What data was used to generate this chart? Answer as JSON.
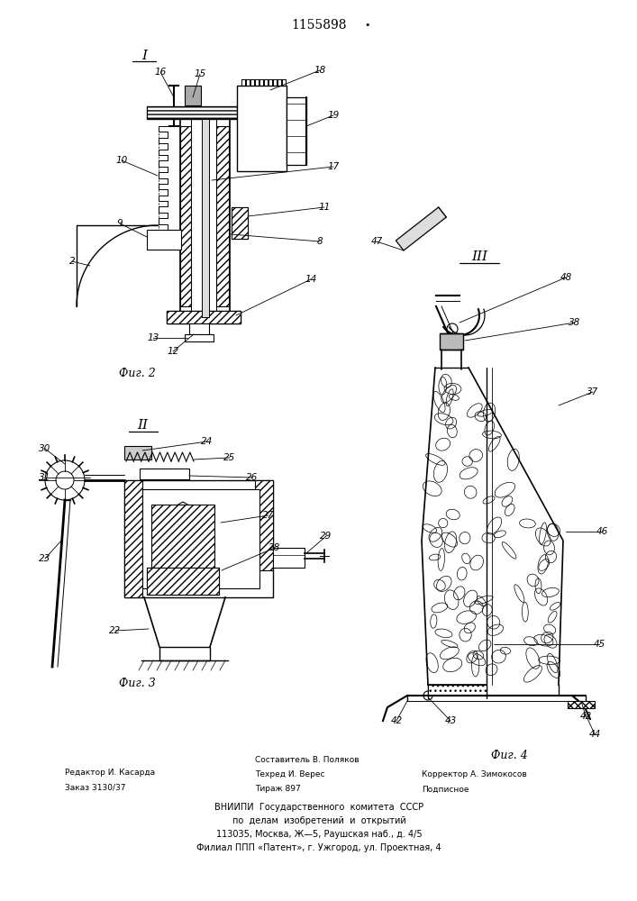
{
  "patent_number": "1155898",
  "background_color": "#ffffff",
  "line_color": "#000000",
  "fig_label_I": "I",
  "fig_label_II": "II",
  "fig_label_III": "III",
  "fig2_caption": "Фиг. 2",
  "fig3_caption": "Фиг. 3",
  "fig4_caption": "Фиг. 4",
  "footer_line1_left": "Редактор И. Касарда",
  "footer_line2_left": "Заказ 3130/37",
  "footer_line1_center": "Составитель В. Поляков",
  "footer_line2_center": "Техред И. Верес",
  "footer_line3_center": "Тираж 897",
  "footer_line2_right": "Корректор А. Зимокосов",
  "footer_line3_right": "Подписное",
  "footer_vniiipi1": "ВНИИПИ  Государственного  комитета  СССР",
  "footer_vniiipi2": "по  делам  изобретений  и  открытий",
  "footer_vniiipi3": "113035, Москва, Ж—5, Раушская наб., д. 4/5",
  "footer_vniiipi4": "Филиал ППП «Патент», г. Ужгород, ул. Проектная, 4"
}
